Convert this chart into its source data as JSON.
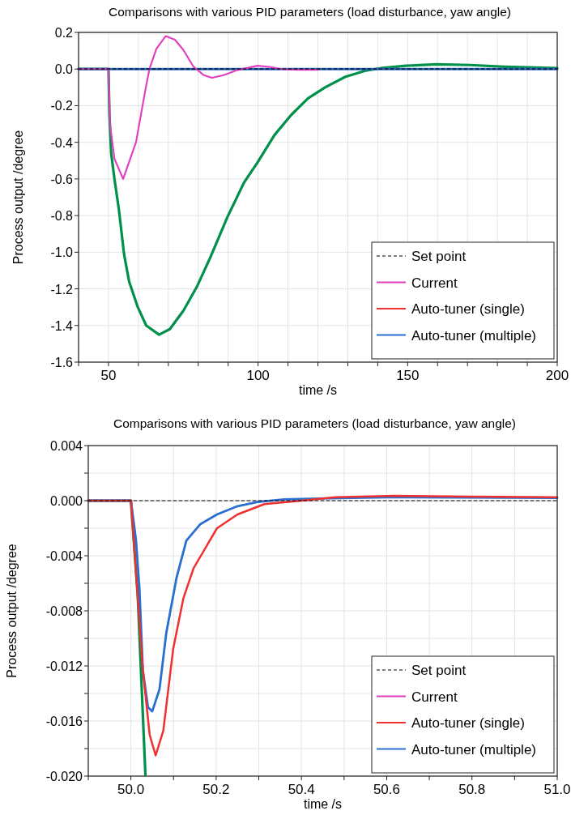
{
  "chart_data": [
    {
      "type": "line",
      "title": "Comparisons with various PID parameters (load disturbance, yaw angle)",
      "xlabel": "time /s",
      "ylabel": "Process output /degree",
      "xlim": [
        40,
        200
      ],
      "xticks": [
        {
          "value": 40,
          "label": null
        },
        50,
        {
          "value": 60,
          "label": null
        },
        {
          "value": 70,
          "label": null
        },
        {
          "value": 80,
          "label": null
        },
        {
          "value": 90,
          "label": null
        },
        100,
        {
          "value": 110,
          "label": null
        },
        {
          "value": 120,
          "label": null
        },
        {
          "value": 130,
          "label": null
        },
        {
          "value": 140,
          "label": null
        },
        150,
        {
          "value": 160,
          "label": null
        },
        {
          "value": 170,
          "label": null
        },
        {
          "value": 180,
          "label": null
        },
        {
          "value": 190,
          "label": null
        },
        200
      ],
      "ylim": [
        -1.6,
        0.2
      ],
      "yticks": [
        {
          "value": 0.2,
          "label": "0.2"
        },
        {
          "value": 0,
          "label": "0.0"
        },
        {
          "value": -0.2,
          "label": "-0.2"
        },
        {
          "value": -0.4,
          "label": "-0.4"
        },
        {
          "value": -0.6,
          "label": "-0.6"
        },
        {
          "value": -0.8,
          "label": "-0.8"
        },
        {
          "value": -1.0,
          "label": "-1.0"
        },
        {
          "value": -1.2,
          "label": "-1.2"
        },
        {
          "value": -1.4,
          "label": "-1.4"
        },
        {
          "value": -1.6,
          "label": "-1.6"
        }
      ],
      "grid": true,
      "legend": "bottom right",
      "series": [
        {
          "name": "Set point",
          "color": "#000000",
          "line_style": "dashed",
          "x": [
            40,
            200
          ],
          "values": [
            0,
            0
          ]
        },
        {
          "name": "Current",
          "color": "#e040c0",
          "x": [
            40,
            50,
            50.5,
            52,
            54.9,
            59.2,
            62.6,
            63.7,
            66,
            69.1,
            72.2,
            75,
            78.4,
            81.8,
            84.6,
            88.5,
            93,
            99.8,
            104.3,
            107.7,
            113,
            120
          ],
          "values": [
            0,
            0,
            -0.3,
            -0.49,
            -0.6,
            -0.4,
            -0.09,
            0,
            0.11,
            0.18,
            0.16,
            0.105,
            0.013,
            -0.033,
            -0.048,
            -0.033,
            -0.006,
            0.018,
            0.011,
            0,
            -0.004,
            -0.004
          ]
        },
        {
          "name": "Auto-tuner (single)",
          "color": "#f03030"
        },
        {
          "name": "Auto-tuner (multiple)",
          "color": "#2a70d0",
          "x": [
            40,
            200
          ],
          "values": [
            0,
            0
          ]
        },
        {
          "color": "#00904a",
          "x": [
            40,
            50,
            50.3,
            50.9,
            52,
            53.5,
            55.2,
            56.9,
            59.8,
            62.6,
            66.9,
            70.5,
            75,
            79.5,
            84,
            89.7,
            95.3,
            99.8,
            105.5,
            111.1,
            116.7,
            122.4,
            129.2,
            135.9,
            141.6,
            149.5,
            159.6,
            170.9,
            182.2,
            200
          ],
          "values": [
            0,
            0,
            -0.24,
            -0.46,
            -0.6,
            -0.77,
            -1.01,
            -1.16,
            -1.3,
            -1.4,
            -1.45,
            -1.42,
            -1.32,
            -1.19,
            -1.03,
            -0.81,
            -0.62,
            -0.51,
            -0.36,
            -0.25,
            -0.16,
            -0.1,
            -0.042,
            -0.009,
            0.006,
            0.018,
            0.026,
            0.022,
            0.013,
            0.005
          ]
        }
      ]
    },
    {
      "type": "line",
      "title": "Comparisons with various PID parameters (load disturbance, yaw angle)",
      "xlabel": "time /s",
      "ylabel": "Process output /degree",
      "xlim": [
        49.9,
        51.0
      ],
      "xticks": [
        {
          "value": 49.9,
          "label": null
        },
        {
          "value": 50.0,
          "label": "50.0"
        },
        {
          "value": 50.1,
          "label": null
        },
        {
          "value": 50.2,
          "label": "50.2"
        },
        {
          "value": 50.3,
          "label": null
        },
        {
          "value": 50.4,
          "label": "50.4"
        },
        {
          "value": 50.5,
          "label": null
        },
        {
          "value": 50.6,
          "label": "50.6"
        },
        {
          "value": 50.7,
          "label": null
        },
        {
          "value": 50.8,
          "label": "50.8"
        },
        {
          "value": 50.9,
          "label": null
        },
        {
          "value": 51.0,
          "label": "51.0"
        }
      ],
      "ylim": [
        -0.02,
        0.004
      ],
      "yticks": [
        {
          "value": 0.004,
          "label": "0.004"
        },
        {
          "value": 0.002,
          "label": null
        },
        {
          "value": 0,
          "label": "0.000"
        },
        {
          "value": -0.002,
          "label": null
        },
        {
          "value": -0.004,
          "label": "-0.004"
        },
        {
          "value": -0.006,
          "label": null
        },
        {
          "value": -0.008,
          "label": "-0.008"
        },
        {
          "value": -0.01,
          "label": null
        },
        {
          "value": -0.012,
          "label": "-0.012"
        },
        {
          "value": -0.014,
          "label": null
        },
        {
          "value": -0.016,
          "label": "-0.016"
        },
        {
          "value": -0.018,
          "label": null
        },
        {
          "value": -0.02,
          "label": "-0.020"
        }
      ],
      "grid": true,
      "legend": "bottom right",
      "series": [
        {
          "name": "Set point",
          "color": "#000000",
          "line_style": "dashed",
          "x": [
            49.9,
            51.0
          ],
          "values": [
            0,
            0
          ]
        },
        {
          "name": "Current",
          "color": "#e040c0"
        },
        {
          "name": "Auto-tuner (single)",
          "color": "#f03030",
          "x": [
            49.9,
            50.0,
            50.028,
            50.044,
            50.058,
            50.076,
            50.099,
            50.123,
            50.147,
            50.202,
            50.25,
            50.313,
            50.4,
            50.479,
            50.62,
            50.796,
            51.0
          ],
          "values": [
            0,
            0,
            -0.0123,
            -0.017,
            -0.0185,
            -0.0167,
            -0.0108,
            -0.0071,
            -0.0049,
            -0.002,
            -0.001,
            -0.00025,
            0,
            0.00025,
            0.00035,
            0.0003,
            0.00025
          ]
        },
        {
          "name": "Auto-tuner (multiple)",
          "color": "#2a70d0",
          "x": [
            49.9,
            50.0,
            50.012,
            50.02,
            50.028,
            50.04,
            50.05,
            50.067,
            50.083,
            50.107,
            50.13,
            50.163,
            50.202,
            50.25,
            50.297,
            50.36,
            50.44,
            50.6,
            51.0
          ],
          "values": [
            0,
            0,
            -0.0029,
            -0.0064,
            -0.0123,
            -0.015,
            -0.0153,
            -0.0137,
            -0.0096,
            -0.0056,
            -0.0029,
            -0.0017,
            -0.001,
            -0.0004,
            -0.0001,
            0.0001,
            0.00015,
            0.00025,
            0.0002
          ]
        },
        {
          "color": "#00904a",
          "x": [
            49.9,
            50.0,
            50.016,
            50.034
          ],
          "values": [
            0,
            0,
            -0.0069,
            -0.0199
          ]
        }
      ]
    }
  ]
}
